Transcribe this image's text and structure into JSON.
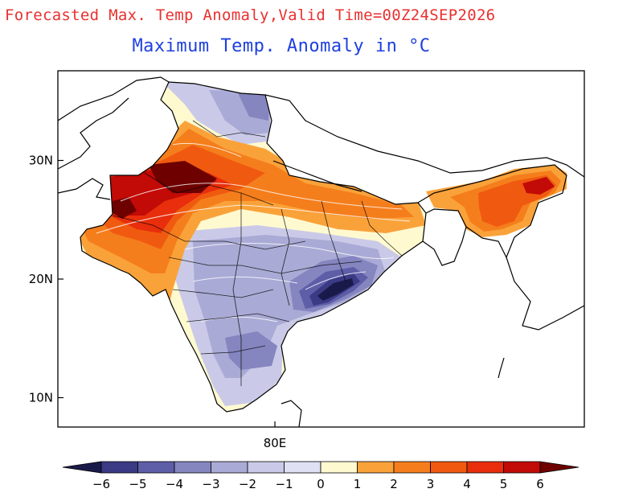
{
  "header": {
    "title": "Forecasted Max. Temp Anomaly,Valid Time=00Z24SEP2026",
    "subtitle": "Maximum Temp. Anomaly in °C"
  },
  "axes": {
    "y_ticks": [
      {
        "label": "30N",
        "lat": 30
      },
      {
        "label": "20N",
        "lat": 20
      },
      {
        "label": "10N",
        "lat": 10
      }
    ],
    "x_ticks": [
      {
        "label": "80E",
        "lon": 80
      }
    ]
  },
  "colorbar": {
    "levels": [
      "−6",
      "−5",
      "−4",
      "−3",
      "−2",
      "−1",
      "0",
      "1",
      "2",
      "3",
      "4",
      "5",
      "6"
    ],
    "colors": [
      "#1a1a4a",
      "#3a3a85",
      "#5d5da8",
      "#8585c0",
      "#aaaad6",
      "#cacae8",
      "#e0e0f4",
      "#fff9d0",
      "#faa23a",
      "#f57e1c",
      "#f05a10",
      "#e82e0c",
      "#c20a06",
      "#6e0000"
    ]
  },
  "colors": {
    "title": "#e8312f",
    "subtitle": "#1e3fe0"
  },
  "map": {
    "region": "India",
    "variable": "Maximum temperature anomaly",
    "units": "°C"
  }
}
